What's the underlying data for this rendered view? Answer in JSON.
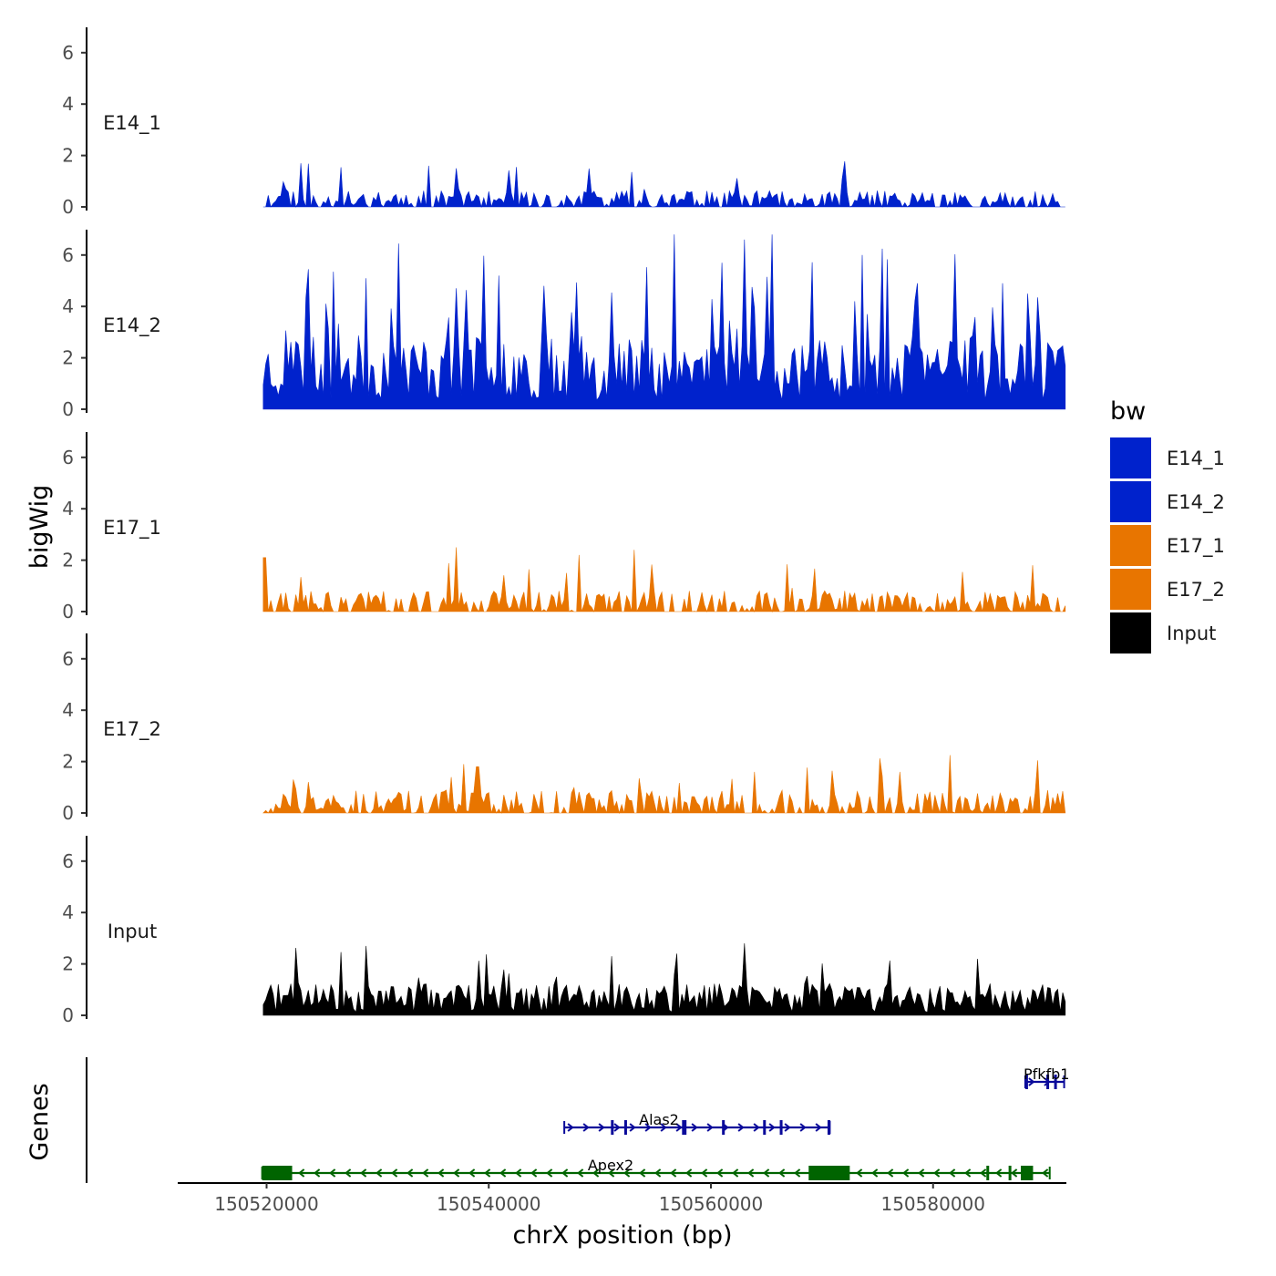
{
  "chart_data": {
    "type": "area",
    "ylabel": "bigWig",
    "xlabel": "chrX position (bp)",
    "ylim": [
      0,
      7
    ],
    "y_ticks": [
      "0",
      "2",
      "4",
      "6"
    ],
    "x_domain": [
      150512000,
      150592000
    ],
    "x_ticks": [
      {
        "value": 150520000,
        "label": "150520000"
      },
      {
        "value": 150540000,
        "label": "150540000"
      },
      {
        "value": 150560000,
        "label": "150560000"
      },
      {
        "value": 150580000,
        "label": "150580000"
      }
    ],
    "signal_range": [
      150519700,
      150591900
    ],
    "tracks": [
      {
        "name": "E14_1",
        "color": "#0022cc",
        "base": 0.35,
        "peak": 1.7,
        "seed": 11,
        "peaks": [
          [
            150523000,
            1.7
          ],
          [
            150534500,
            1.6
          ],
          [
            150542500,
            1.55
          ],
          [
            150537000,
            1.5
          ]
        ]
      },
      {
        "name": "E14_2",
        "color": "#0022cc",
        "base": 1.6,
        "peak": 5.0,
        "seed": 23,
        "peaks": [
          [
            150563000,
            6.6
          ],
          [
            150561000,
            5.7
          ],
          [
            150529000,
            5.1
          ],
          [
            150541000,
            5.2
          ],
          [
            150545000,
            4.8
          ],
          [
            150578500,
            4.9
          ],
          [
            150588500,
            4.5
          ]
        ]
      },
      {
        "name": "E17_1",
        "color": "#e87500",
        "base": 0.45,
        "peak": 1.8,
        "seed": 37,
        "peaks": [
          [
            150537000,
            2.5
          ],
          [
            150553000,
            2.4
          ],
          [
            150519800,
            2.1
          ],
          [
            150589000,
            1.8
          ]
        ]
      },
      {
        "name": "E17_2",
        "color": "#e87500",
        "base": 0.5,
        "peak": 1.7,
        "seed": 53,
        "peaks": [
          [
            150537800,
            1.9
          ],
          [
            150539000,
            1.8
          ],
          [
            150564000,
            1.6
          ],
          [
            150577000,
            1.6
          ]
        ]
      },
      {
        "name": "Input",
        "color": "#000000",
        "base": 0.8,
        "peak": 2.0,
        "seed": 71,
        "peaks": [
          [
            150529000,
            2.7
          ],
          [
            150563000,
            2.8
          ],
          [
            150557000,
            2.4
          ],
          [
            150551000,
            2.3
          ],
          [
            150584000,
            2.2
          ]
        ]
      }
    ],
    "genes_label": "Genes",
    "genes": [
      {
        "name": "Pfkfb1",
        "start": 150588300,
        "end": 150591800,
        "strand": "+",
        "color": "#0a0a9a",
        "row": 0,
        "exons": [
          [
            150588300,
            150588500
          ],
          [
            150590200,
            150590400
          ],
          [
            150590900,
            150591000
          ]
        ]
      },
      {
        "name": "Alas2",
        "start": 150546800,
        "end": 150570700,
        "strand": "+",
        "color": "#0a0a9a",
        "row": 1,
        "exons": [
          [
            150551000,
            150551150
          ],
          [
            150552200,
            150552400
          ],
          [
            150557400,
            150557800
          ],
          [
            150561000,
            150561200
          ],
          [
            150564700,
            150564900
          ],
          [
            150566200,
            150566400
          ],
          [
            150570500,
            150570700
          ]
        ]
      },
      {
        "name": "Apex2",
        "start": 150519600,
        "end": 150590500,
        "strand": "-",
        "color": "#006400",
        "row": 2,
        "exons": [
          [
            150519600,
            150522300
          ],
          [
            150568800,
            150572500
          ],
          [
            150584800,
            150585000
          ],
          [
            150586800,
            150587000
          ],
          [
            150587900,
            150589000
          ]
        ]
      }
    ],
    "legend": {
      "title": "bw",
      "entries": [
        {
          "label": "E14_1",
          "color": "#0022cc"
        },
        {
          "label": "E14_2",
          "color": "#0022cc"
        },
        {
          "label": "E17_1",
          "color": "#e87500"
        },
        {
          "label": "E17_2",
          "color": "#e87500"
        },
        {
          "label": "Input",
          "color": "#000000"
        }
      ]
    }
  }
}
